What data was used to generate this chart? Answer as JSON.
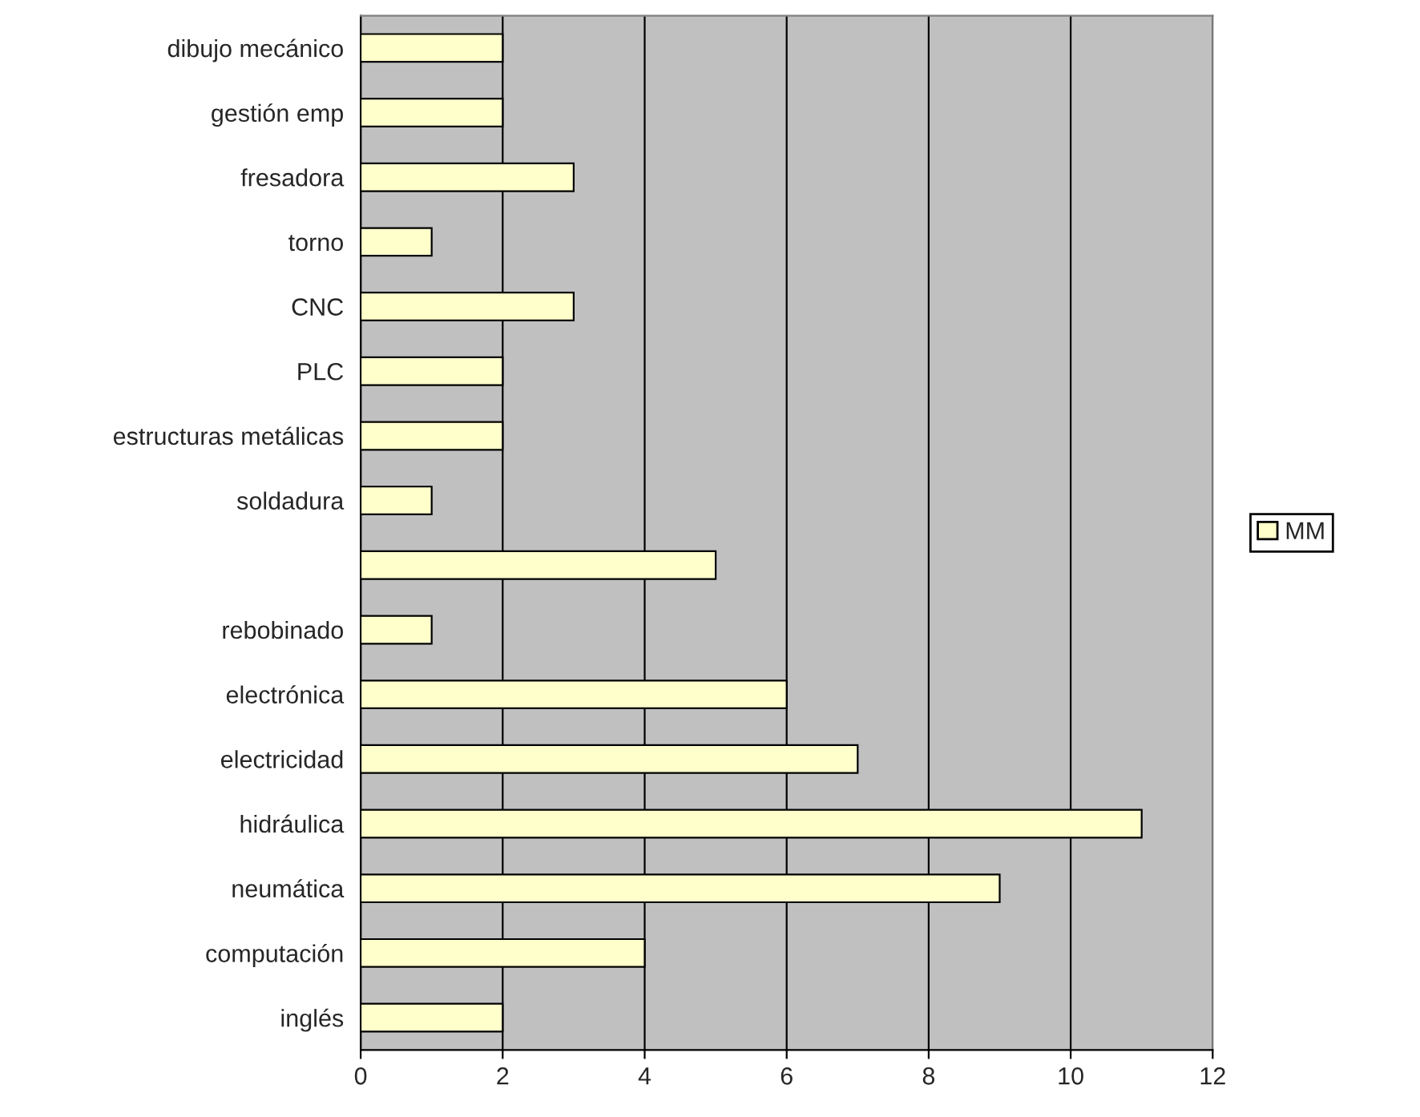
{
  "chart_data": {
    "type": "bar",
    "orientation": "horizontal",
    "categories": [
      "dibujo mecánico",
      "gestión emp",
      "fresadora",
      "torno",
      "CNC",
      "PLC",
      "estructuras metálicas",
      "soldadura",
      null,
      "rebobinado",
      "electrónica",
      "electricidad",
      "hidráulica",
      "neumática",
      "computación",
      "inglés"
    ],
    "series": [
      {
        "name": "MM",
        "color": "#ffffcc",
        "values": [
          2,
          2,
          3,
          1,
          3,
          2,
          2,
          1,
          5,
          1,
          6,
          7,
          11,
          9,
          4,
          2
        ]
      }
    ],
    "xlim": [
      0,
      12
    ],
    "xticks": [
      0,
      2,
      4,
      6,
      8,
      10,
      12
    ],
    "grid": "x",
    "legend": "right"
  }
}
